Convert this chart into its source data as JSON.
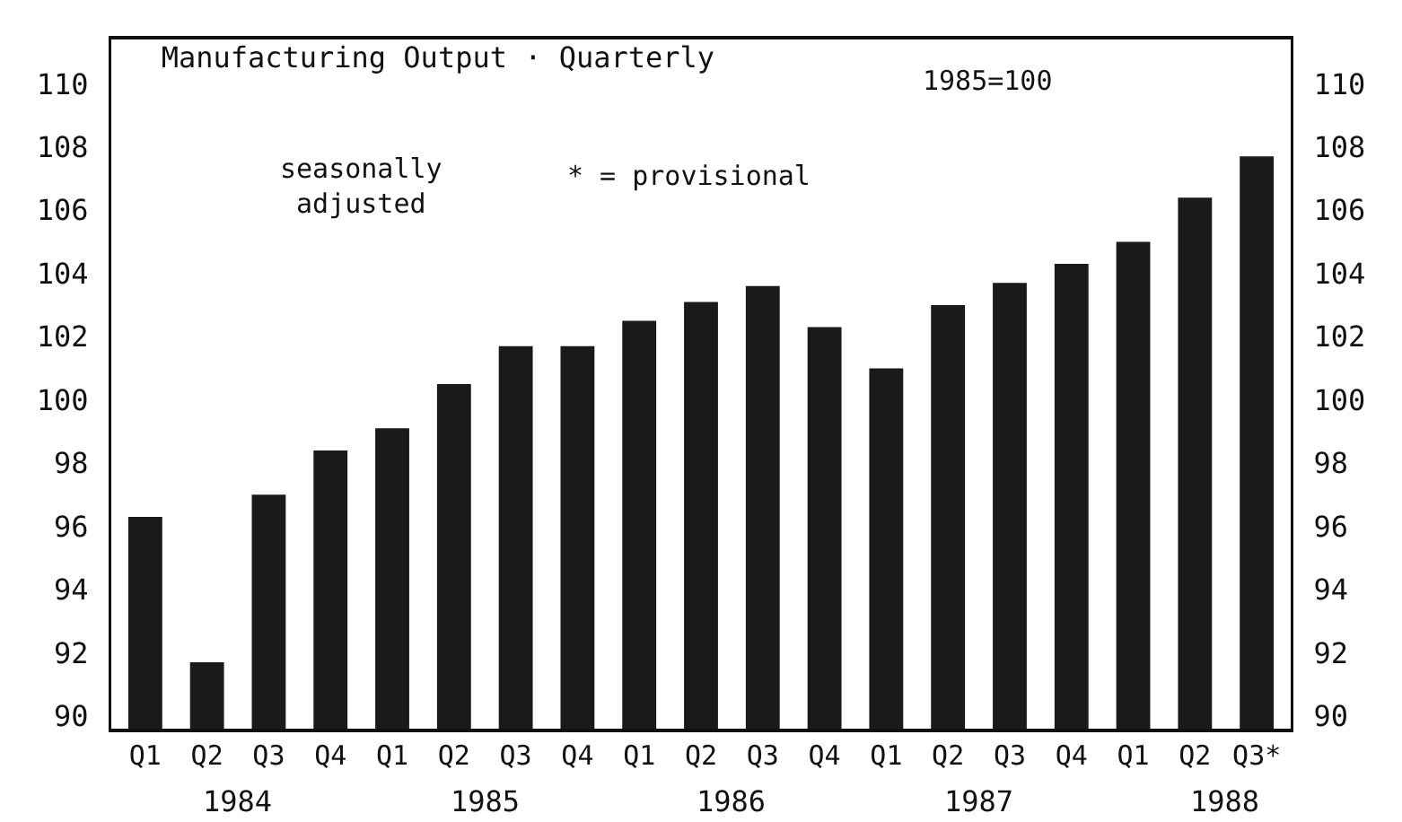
{
  "chart_data": {
    "type": "bar",
    "title": "Manufacturing Output · Quarterly",
    "subtitle": "1985=100",
    "categories": [
      "Q1",
      "Q2",
      "Q3",
      "Q4",
      "Q1",
      "Q2",
      "Q3",
      "Q4",
      "Q1",
      "Q2",
      "Q3",
      "Q4",
      "Q1",
      "Q2",
      "Q3",
      "Q4",
      "Q1",
      "Q2",
      "Q3*"
    ],
    "values": [
      96.3,
      91.7,
      97.0,
      98.4,
      99.1,
      100.5,
      101.7,
      101.7,
      102.5,
      103.1,
      103.6,
      102.3,
      101.0,
      103.0,
      103.7,
      104.3,
      105.0,
      106.4,
      107.7
    ],
    "color": "#1a1a1a",
    "ylim": [
      89.6,
      111.4
    ],
    "yticks": [
      90,
      92,
      94,
      96,
      98,
      100,
      102,
      104,
      106,
      108,
      110
    ],
    "y2lim": [
      89.6,
      111.4
    ],
    "y2ticks": [
      90,
      92,
      94,
      96,
      98,
      100,
      102,
      104,
      106,
      108,
      110
    ],
    "grid": false,
    "annotations": [
      "seasonally\nadjusted",
      "* = provisional",
      "1984",
      "1985",
      "1986",
      "1987",
      "1988"
    ]
  }
}
